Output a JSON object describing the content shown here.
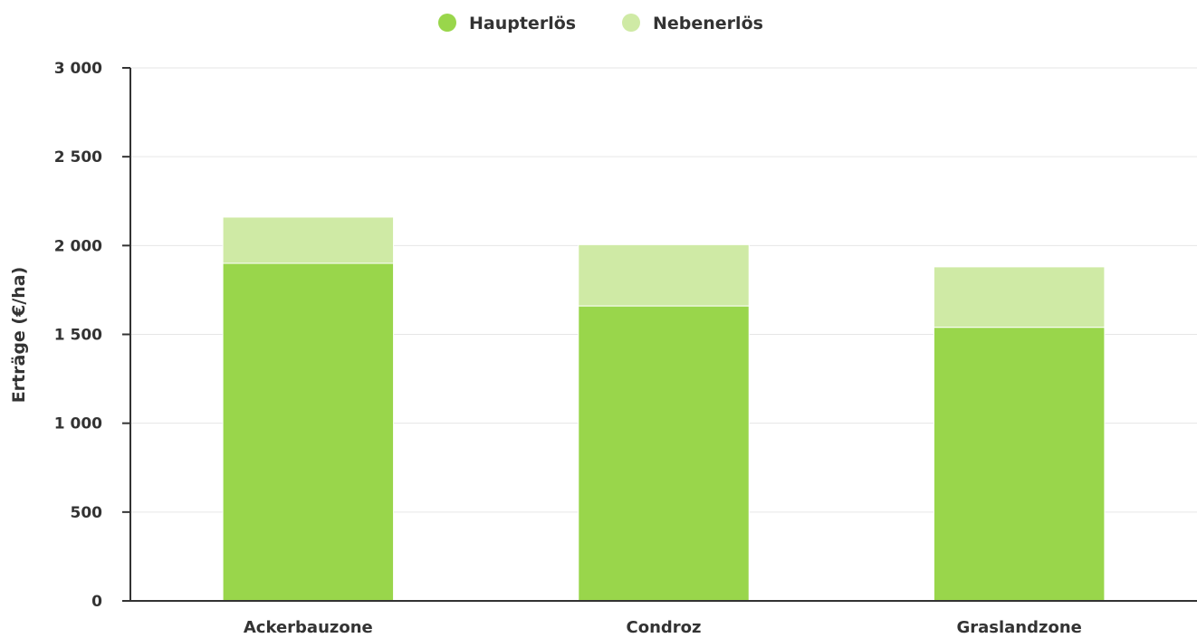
{
  "chart_data": {
    "type": "bar",
    "stacked": true,
    "categories": [
      "Ackerbauzone",
      "Condroz",
      "Graslandzone"
    ],
    "series": [
      {
        "name": "Haupterlös",
        "values": [
          1900,
          1660,
          1540
        ],
        "color": "#99d64b"
      },
      {
        "name": "Nebenerlös",
        "values": [
          260,
          345,
          340
        ],
        "color": "#cfeaa5"
      }
    ],
    "title": "",
    "xlabel": "",
    "ylabel": "Erträge (€/ha)",
    "ylim": [
      0,
      3000
    ],
    "yticks": [
      0,
      500,
      1000,
      1500,
      2000,
      2500,
      3000
    ],
    "ytick_labels": [
      "0",
      "500",
      "1 000",
      "1 500",
      "2 000",
      "2 500",
      "3 000"
    ],
    "grid": true,
    "legend_position": "top-center"
  }
}
